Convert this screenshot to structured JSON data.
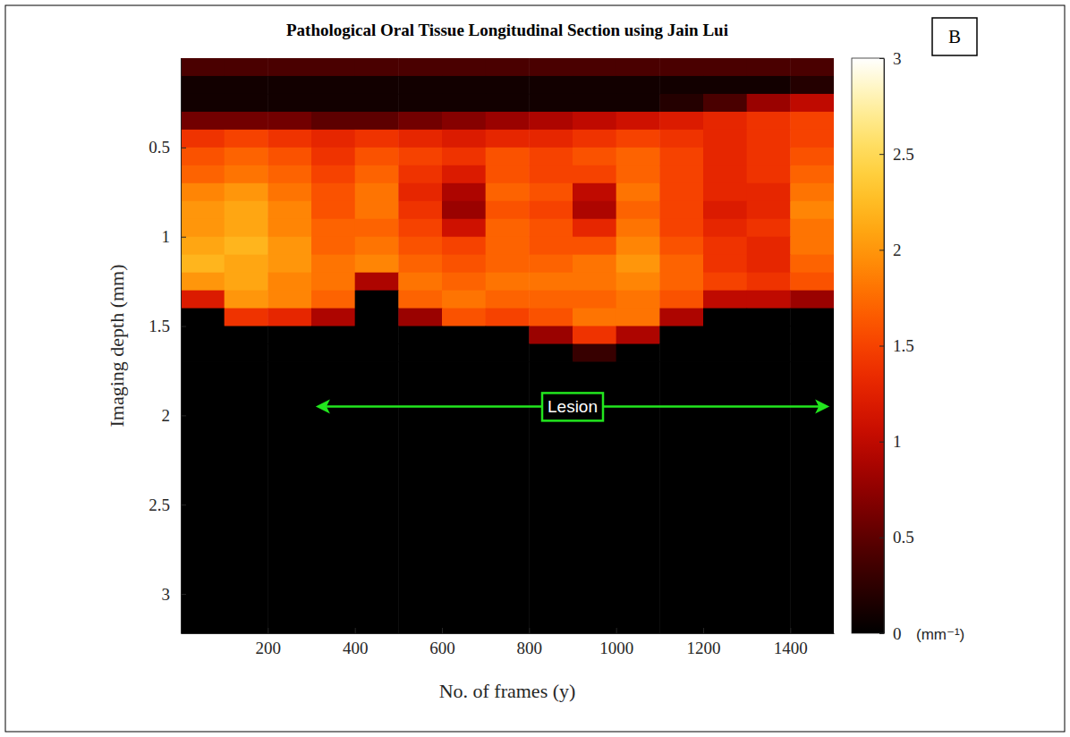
{
  "chart_data": {
    "type": "heatmap",
    "title": "Pathological Oral Tissue Longitudinal Section using Jain Lui",
    "panel_label": "B",
    "x_label": "No. of frames (y)",
    "y_label": "Imaging depth (mm)",
    "xlim": [
      0,
      1500
    ],
    "ylim": [
      0,
      3.22
    ],
    "xticks": [
      200,
      400,
      600,
      800,
      1000,
      1200,
      1400
    ],
    "yticks": [
      0.5,
      1,
      1.5,
      2,
      2.5,
      3
    ],
    "x_bins": [
      0,
      100,
      200,
      300,
      400,
      500,
      600,
      700,
      800,
      900,
      1000,
      1100,
      1200,
      1300,
      1400,
      1500
    ],
    "y_bins": [
      0,
      0.1,
      0.2,
      0.3,
      0.4,
      0.5,
      0.6,
      0.7,
      0.8,
      0.9,
      1.0,
      1.1,
      1.2,
      1.3,
      1.4,
      1.5,
      1.6,
      1.7,
      3.22
    ],
    "values": [
      [
        0.4,
        0.4,
        0.4,
        0.4,
        0.4,
        0.4,
        0.4,
        0.4,
        0.4,
        0.4,
        0.4,
        0.4,
        0.4,
        0.4,
        0.4
      ],
      [
        0.1,
        0.1,
        0.1,
        0.1,
        0.1,
        0.1,
        0.1,
        0.1,
        0.1,
        0.1,
        0.1,
        0.1,
        0.1,
        0.1,
        0.2
      ],
      [
        0.1,
        0.1,
        0.1,
        0.1,
        0.1,
        0.1,
        0.1,
        0.1,
        0.1,
        0.1,
        0.1,
        0.2,
        0.4,
        0.8,
        1.0
      ],
      [
        0.6,
        0.6,
        0.6,
        0.5,
        0.5,
        0.6,
        0.7,
        0.8,
        0.9,
        1.0,
        1.1,
        1.2,
        1.3,
        1.4,
        1.5
      ],
      [
        1.4,
        1.5,
        1.4,
        1.3,
        1.4,
        1.3,
        1.2,
        1.3,
        1.3,
        1.4,
        1.5,
        1.4,
        1.3,
        1.4,
        1.5
      ],
      [
        1.6,
        1.7,
        1.6,
        1.4,
        1.6,
        1.5,
        1.4,
        1.6,
        1.5,
        1.6,
        1.7,
        1.5,
        1.3,
        1.4,
        1.6
      ],
      [
        1.7,
        1.8,
        1.7,
        1.5,
        1.7,
        1.4,
        1.2,
        1.6,
        1.5,
        1.5,
        1.7,
        1.5,
        1.3,
        1.4,
        1.7
      ],
      [
        1.9,
        2.0,
        1.8,
        1.6,
        1.8,
        1.3,
        0.9,
        1.7,
        1.6,
        1.0,
        1.8,
        1.5,
        1.3,
        1.3,
        1.8
      ],
      [
        2.0,
        2.1,
        1.9,
        1.6,
        1.8,
        1.4,
        0.8,
        1.6,
        1.5,
        0.9,
        1.7,
        1.5,
        1.2,
        1.3,
        1.9
      ],
      [
        2.0,
        2.1,
        1.9,
        1.7,
        1.7,
        1.5,
        1.1,
        1.7,
        1.6,
        1.3,
        1.8,
        1.5,
        1.3,
        1.4,
        1.8
      ],
      [
        2.1,
        2.2,
        2.0,
        1.7,
        1.8,
        1.6,
        1.5,
        1.7,
        1.6,
        1.6,
        1.9,
        1.6,
        1.4,
        1.3,
        1.8
      ],
      [
        2.2,
        2.1,
        2.0,
        1.8,
        1.9,
        1.7,
        1.6,
        1.7,
        1.7,
        1.8,
        2.0,
        1.7,
        1.4,
        1.3,
        1.7
      ],
      [
        2.0,
        2.1,
        1.9,
        1.8,
        0.9,
        1.8,
        1.7,
        1.8,
        1.8,
        1.8,
        1.9,
        1.7,
        1.5,
        1.4,
        1.6
      ],
      [
        1.2,
        2.0,
        1.9,
        1.7,
        0,
        1.7,
        1.8,
        1.7,
        1.7,
        1.7,
        1.8,
        1.6,
        1.0,
        1.0,
        0.8
      ],
      [
        0,
        1.4,
        1.3,
        0.9,
        0,
        0.8,
        1.6,
        1.5,
        1.6,
        1.8,
        1.8,
        0.9,
        0,
        0,
        0
      ],
      [
        0,
        0,
        0,
        0,
        0,
        0,
        0,
        0,
        0.8,
        1.4,
        0.9,
        0,
        0,
        0,
        0
      ],
      [
        0,
        0,
        0,
        0,
        0,
        0,
        0,
        0,
        0,
        0.3,
        0,
        0,
        0,
        0,
        0
      ],
      [
        0,
        0,
        0,
        0,
        0,
        0,
        0,
        0,
        0,
        0,
        0,
        0,
        0,
        0,
        0
      ]
    ],
    "colorbar_range": [
      0,
      3
    ],
    "colorbar_ticks": [
      0,
      0.5,
      1,
      1.5,
      2,
      2.5,
      3
    ],
    "colorbar_label": "(mm⁻¹)",
    "annotations": [
      {
        "text": "Lesion",
        "x": [
          310,
          1490
        ],
        "y": 1.95
      }
    ]
  }
}
